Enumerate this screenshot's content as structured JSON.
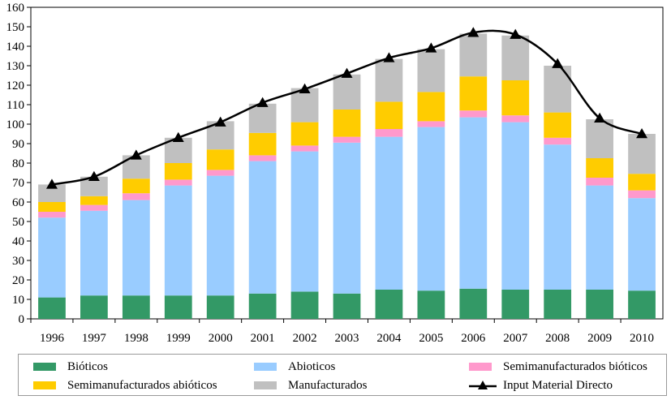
{
  "chart_data": {
    "type": "bar",
    "stacked": true,
    "categories": [
      "1996",
      "1997",
      "1998",
      "1999",
      "2000",
      "2001",
      "2002",
      "2003",
      "2004",
      "2005",
      "2006",
      "2007",
      "2008",
      "2009",
      "2010"
    ],
    "ylim": [
      0,
      160
    ],
    "ytick_step": 10,
    "yticks": [
      "0",
      "10",
      "20",
      "30",
      "40",
      "50",
      "60",
      "70",
      "80",
      "90",
      "100",
      "110",
      "120",
      "130",
      "140",
      "150",
      "160"
    ],
    "grid": false,
    "legend_placement": "bottom",
    "series": [
      {
        "name": "Bióticos",
        "color": "#339966",
        "values": [
          11,
          12,
          12,
          12,
          12,
          13,
          14,
          13,
          15,
          14.5,
          15.5,
          15,
          15,
          15,
          14.5
        ]
      },
      {
        "name": "Abioticos",
        "color": "#99CCFF",
        "values": [
          41,
          43.5,
          49,
          56.5,
          61.5,
          68,
          72,
          77.5,
          78.5,
          84,
          88,
          86,
          74.5,
          53.5,
          47.5
        ]
      },
      {
        "name": "Semimanufacturados bióticos",
        "color": "#FF99CC",
        "values": [
          3,
          3,
          3.5,
          3,
          3,
          3,
          3,
          3,
          4,
          3,
          3.5,
          3.5,
          3.5,
          4,
          4
        ]
      },
      {
        "name": "Semimanufacturados abióticos",
        "color": "#FFCC00",
        "values": [
          5,
          4.5,
          7.5,
          8.5,
          10.5,
          11.5,
          12,
          14,
          14,
          15,
          17.5,
          18,
          13,
          10,
          8.5
        ]
      },
      {
        "name": "Manufacturados",
        "color": "#C0C0C0",
        "values": [
          9,
          10,
          12,
          13,
          14.5,
          15,
          17.5,
          18,
          22,
          22,
          22,
          23,
          24,
          20,
          20.5
        ]
      }
    ],
    "line_series": {
      "name": "Input Material Directo",
      "color": "#000000",
      "marker": "triangle",
      "values": [
        69,
        73,
        84,
        93,
        101,
        111,
        118,
        126,
        134,
        139,
        147,
        146,
        131,
        103,
        95
      ]
    }
  }
}
